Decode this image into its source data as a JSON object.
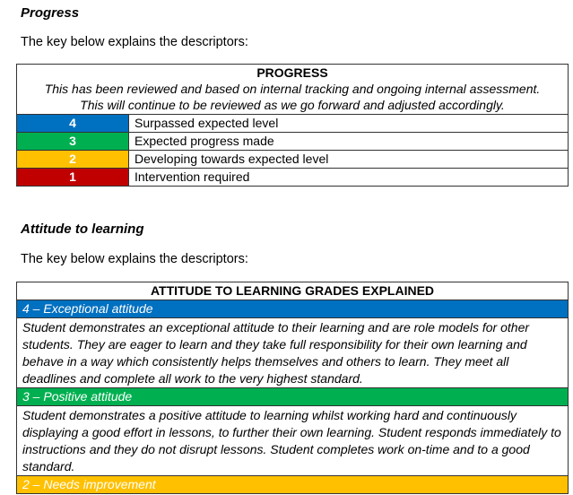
{
  "progress_section": {
    "heading": "Progress",
    "intro": "The key below explains the descriptors:",
    "table": {
      "title": "PROGRESS",
      "note_line1": "This has been reviewed and based on internal tracking and ongoing internal assessment.",
      "note_line2": "This will continue to be reviewed as we go forward and adjusted accordingly.",
      "rows": [
        {
          "grade": "4",
          "label": "Surpassed expected level",
          "color": "#0070C0"
        },
        {
          "grade": "3",
          "label": "Expected progress made",
          "color": "#00B050"
        },
        {
          "grade": "2",
          "label": "Developing towards expected level",
          "color": "#FFC000"
        },
        {
          "grade": "1",
          "label": "Intervention required",
          "color": "#C00000"
        }
      ]
    }
  },
  "attitude_section": {
    "heading": "Attitude to learning",
    "intro": "The key below explains the descriptors:",
    "table": {
      "title": "ATTITUDE TO LEARNING GRADES EXPLAINED",
      "grades": [
        {
          "label": "4 – Exceptional attitude",
          "color": "#0070C0",
          "description": "Student demonstrates an exceptional attitude to their learning and are role models for other students. They are eager to learn and they take full responsibility for their own learning and behave in a way which consistently helps themselves and others to learn. They meet all deadlines and complete all work to the very highest standard."
        },
        {
          "label": "3 – Positive attitude",
          "color": "#00B050",
          "description": "Student demonstrates a positive attitude to learning whilst working hard and continuously displaying a good effort in lessons, to further their own learning. Student responds immediately to instructions and they do not disrupt lessons. Student completes work on-time and to a good standard."
        },
        {
          "label": "2 – Needs improvement",
          "color": "#FFC000"
        }
      ]
    }
  }
}
